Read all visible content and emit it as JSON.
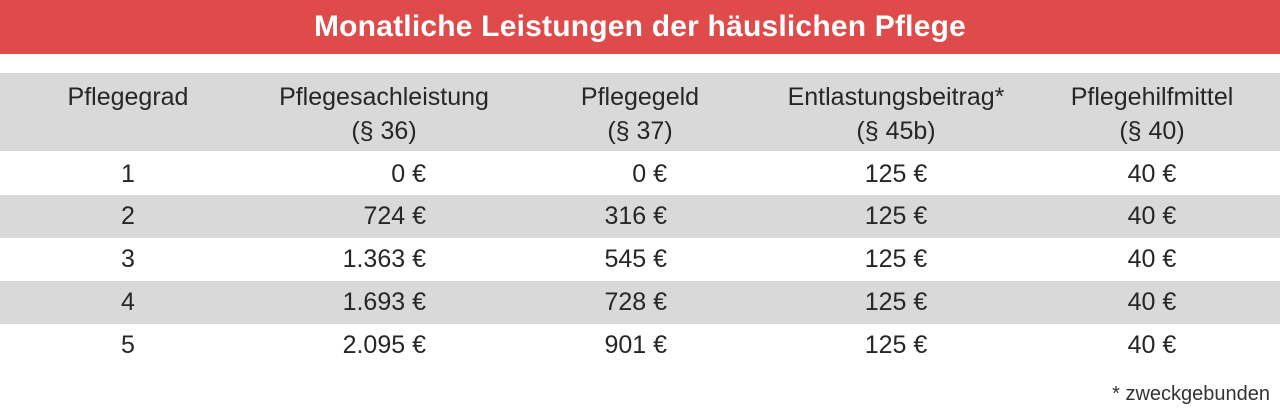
{
  "chart_data": {
    "type": "table",
    "title": "Monatliche Leistungen der häuslichen Pflege",
    "columns": [
      {
        "label": "Pflegegrad",
        "sub": ""
      },
      {
        "label": "Pflegesachleistung",
        "sub": "(§ 36)"
      },
      {
        "label": "Pflegegeld",
        "sub": "(§ 37)"
      },
      {
        "label": "Entlastungsbeitrag*",
        "sub": "(§ 45b)"
      },
      {
        "label": "Pflegehilfmittel",
        "sub": "(§ 40)"
      }
    ],
    "rows": [
      [
        "1",
        "0 €",
        "0 €",
        "125 €",
        "40 €"
      ],
      [
        "2",
        "724 €",
        "316 €",
        "125 €",
        "40 €"
      ],
      [
        "3",
        "1.363 €",
        "545 €",
        "125 €",
        "40 €"
      ],
      [
        "4",
        "1.693 €",
        "728 €",
        "125 €",
        "40 €"
      ],
      [
        "5",
        "2.095 €",
        "901 €",
        "125 €",
        "40 €"
      ]
    ],
    "footnote": "* zweckgebunden",
    "layout_hints": {
      "zebra_striping": true,
      "value_alignment": "right for Pflegesachleistung/Pflegegeld, centered others"
    }
  },
  "colors": {
    "accent_red": "#df4b4b",
    "row_gray": "#d9d9d9",
    "text": "#262626",
    "title_text": "#ffffff"
  }
}
